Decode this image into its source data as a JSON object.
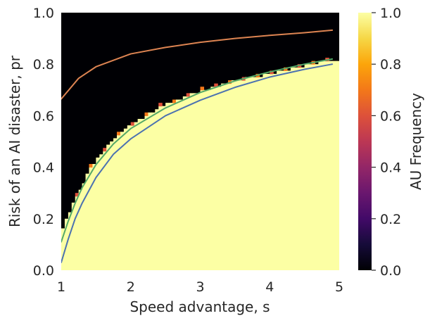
{
  "chart_data": {
    "type": "heatmap",
    "xlabel": "Speed advantage, s",
    "ylabel": "Risk of an AI disaster, pr",
    "colorbar_label": "AU Frequency",
    "colormap": "inferno",
    "xlim": [
      1,
      5
    ],
    "ylim": [
      0,
      1
    ],
    "clim": [
      0,
      1
    ],
    "x_ticks": [
      "1",
      "2",
      "3",
      "4",
      "5"
    ],
    "y_ticks": [
      "0.0",
      "0.2",
      "0.4",
      "0.6",
      "0.8",
      "1.0"
    ],
    "colorbar_ticks": [
      "0.0",
      "0.2",
      "0.4",
      "0.6",
      "0.8",
      "1.0"
    ],
    "grid": false,
    "heatmap_boundary": {
      "description": "cells below boundary have AU frequency 1.0, above 0.0",
      "s": [
        1.0,
        1.1,
        1.2,
        1.3,
        1.4,
        1.5,
        1.7,
        2.0,
        2.5,
        3.0,
        3.5,
        4.0,
        4.5,
        4.95
      ],
      "pr": [
        0.16,
        0.22,
        0.28,
        0.33,
        0.39,
        0.43,
        0.5,
        0.57,
        0.65,
        0.7,
        0.74,
        0.77,
        0.8,
        0.825
      ]
    },
    "series": [
      {
        "color": "#dd8452",
        "x": [
          1.0,
          1.25,
          1.5,
          2.0,
          2.5,
          3.0,
          3.5,
          4.0,
          4.5,
          4.9
        ],
        "y": [
          0.665,
          0.745,
          0.79,
          0.84,
          0.865,
          0.885,
          0.9,
          0.912,
          0.922,
          0.932
        ]
      },
      {
        "color": "#55a868",
        "x": [
          1.0,
          1.1,
          1.2,
          1.3,
          1.5,
          1.75,
          2.0,
          2.5,
          3.0,
          3.5,
          4.0,
          4.5,
          4.9
        ],
        "y": [
          0.11,
          0.19,
          0.26,
          0.32,
          0.41,
          0.49,
          0.55,
          0.63,
          0.69,
          0.735,
          0.77,
          0.8,
          0.82
        ]
      },
      {
        "color": "#4c72b0",
        "x": [
          1.0,
          1.1,
          1.2,
          1.3,
          1.5,
          1.75,
          2.0,
          2.5,
          3.0,
          3.5,
          4.0,
          4.5,
          4.9
        ],
        "y": [
          0.03,
          0.12,
          0.2,
          0.26,
          0.36,
          0.45,
          0.51,
          0.6,
          0.66,
          0.71,
          0.75,
          0.78,
          0.8
        ]
      }
    ]
  }
}
